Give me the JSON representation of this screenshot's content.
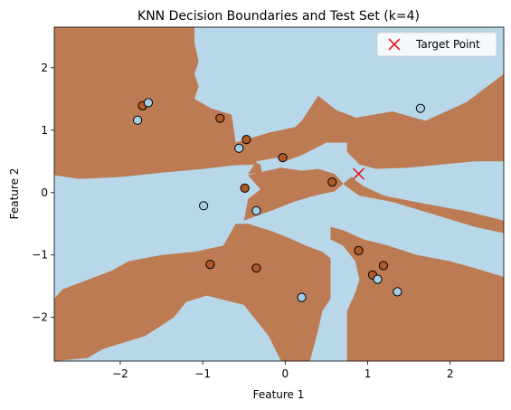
{
  "chart_data": {
    "type": "scatter",
    "title": "KNN Decision Boundaries and Test Set (k=4)",
    "xlabel": "Feature 1",
    "ylabel": "Feature 2",
    "xlim": [
      -2.8,
      2.65
    ],
    "ylim": [
      -2.7,
      2.65
    ],
    "xticks": [
      -2,
      -1,
      0,
      1,
      2
    ],
    "yticks": [
      -2,
      -1,
      0,
      1,
      2
    ],
    "grid": false,
    "legend_position": "top-right",
    "colors": {
      "region_class_0": "#b8d7e8",
      "region_class_1": "#bd7b53",
      "point_class_0": "#a6cee3",
      "point_class_1": "#b15928",
      "target": "#e41a1c",
      "point_edge": "#000000"
    },
    "test_points": [
      {
        "x": -1.73,
        "y": 1.39,
        "class": 1
      },
      {
        "x": -1.66,
        "y": 1.44,
        "class": 0
      },
      {
        "x": -1.79,
        "y": 1.16,
        "class": 0
      },
      {
        "x": -0.79,
        "y": 1.19,
        "class": 1
      },
      {
        "x": -0.47,
        "y": 0.85,
        "class": 1
      },
      {
        "x": -0.56,
        "y": 0.71,
        "class": 0
      },
      {
        "x": -0.03,
        "y": 0.56,
        "class": 1
      },
      {
        "x": -0.49,
        "y": 0.07,
        "class": 1
      },
      {
        "x": 0.57,
        "y": 0.17,
        "class": 1
      },
      {
        "x": 1.64,
        "y": 1.35,
        "class": 0
      },
      {
        "x": -0.99,
        "y": -0.21,
        "class": 0
      },
      {
        "x": -0.35,
        "y": -0.29,
        "class": 0
      },
      {
        "x": -0.91,
        "y": -1.15,
        "class": 1
      },
      {
        "x": -0.35,
        "y": -1.21,
        "class": 1
      },
      {
        "x": 0.2,
        "y": -1.68,
        "class": 0
      },
      {
        "x": 0.89,
        "y": -0.93,
        "class": 1
      },
      {
        "x": 1.19,
        "y": -1.17,
        "class": 1
      },
      {
        "x": 1.06,
        "y": -1.32,
        "class": 1
      },
      {
        "x": 1.12,
        "y": -1.39,
        "class": 0
      },
      {
        "x": 1.36,
        "y": -1.59,
        "class": 0
      }
    ],
    "target_point": {
      "x": 0.89,
      "y": 0.3,
      "name": "Target Point"
    },
    "regions_class_1": [
      [
        [
          -2.8,
          0.28
        ],
        [
          -2.2,
          0.42
        ],
        [
          -1.6,
          0.52
        ],
        [
          -1.0,
          0.64
        ],
        [
          -0.6,
          0.8
        ],
        [
          -0.2,
          0.96
        ],
        [
          0.12,
          1.05
        ],
        [
          0.2,
          1.15
        ],
        [
          0.4,
          1.55
        ],
        [
          0.62,
          1.32
        ],
        [
          0.86,
          1.2
        ],
        [
          1.3,
          1.3
        ],
        [
          1.7,
          1.15
        ],
        [
          2.2,
          1.45
        ],
        [
          2.65,
          1.9
        ],
        [
          2.65,
          0.5
        ],
        [
          2.3,
          0.5
        ],
        [
          1.9,
          0.45
        ],
        [
          1.5,
          0.4
        ],
        [
          1.1,
          0.38
        ],
        [
          0.9,
          0.45
        ],
        [
          0.75,
          0.65
        ],
        [
          0.75,
          0.8
        ],
        [
          0.5,
          0.8
        ],
        [
          0.2,
          0.6
        ],
        [
          0.0,
          0.5
        ],
        [
          -0.1,
          0.56
        ],
        [
          -0.35,
          0.5
        ],
        [
          -0.45,
          0.3
        ],
        [
          -0.28,
          0.32
        ],
        [
          -0.3,
          0.45
        ],
        [
          -0.6,
          0.44
        ],
        [
          -1.0,
          0.38
        ],
        [
          -1.5,
          0.32
        ],
        [
          -2.0,
          0.25
        ],
        [
          -2.5,
          0.22
        ]
      ],
      [
        [
          -2.8,
          0.28
        ],
        [
          -2.5,
          0.22
        ],
        [
          -2.0,
          0.25
        ],
        [
          -1.5,
          0.32
        ],
        [
          -1.0,
          0.38
        ],
        [
          -0.6,
          0.44
        ],
        [
          -0.3,
          0.45
        ],
        [
          -0.45,
          0.55
        ],
        [
          -0.6,
          0.8
        ],
        [
          -0.65,
          1.25
        ],
        [
          -0.9,
          1.35
        ],
        [
          -1.1,
          1.5
        ],
        [
          -1.05,
          1.7
        ],
        [
          -1.1,
          1.9
        ],
        [
          -1.05,
          2.1
        ],
        [
          -1.1,
          2.4
        ],
        [
          -1.1,
          2.65
        ],
        [
          -2.8,
          2.65
        ]
      ],
      [
        [
          -0.5,
          -0.45
        ],
        [
          -0.45,
          -0.1
        ],
        [
          -0.3,
          0.05
        ],
        [
          -0.45,
          0.28
        ],
        [
          -0.25,
          0.34
        ],
        [
          -0.05,
          0.4
        ],
        [
          0.2,
          0.35
        ],
        [
          0.4,
          0.38
        ],
        [
          0.6,
          0.3
        ],
        [
          0.72,
          0.12
        ],
        [
          0.9,
          -0.05
        ],
        [
          1.3,
          -0.15
        ],
        [
          1.8,
          -0.35
        ],
        [
          2.3,
          -0.55
        ],
        [
          2.65,
          -0.65
        ],
        [
          2.65,
          -0.45
        ],
        [
          2.2,
          -0.3
        ],
        [
          1.7,
          -0.18
        ],
        [
          1.2,
          -0.05
        ],
        [
          0.95,
          0.1
        ],
        [
          0.8,
          0.25
        ],
        [
          0.6,
          0.02
        ],
        [
          0.35,
          -0.05
        ],
        [
          0.1,
          -0.15
        ],
        [
          -0.15,
          -0.28
        ],
        [
          -0.3,
          -0.35
        ]
      ],
      [
        [
          -2.8,
          -1.7
        ],
        [
          -2.7,
          -1.55
        ],
        [
          -2.5,
          -1.45
        ],
        [
          -2.1,
          -1.25
        ],
        [
          -1.9,
          -1.1
        ],
        [
          -1.5,
          -1.0
        ],
        [
          -1.1,
          -0.95
        ],
        [
          -0.75,
          -0.85
        ],
        [
          -0.6,
          -0.5
        ],
        [
          -0.45,
          -0.5
        ],
        [
          -0.2,
          -0.6
        ],
        [
          0.0,
          -0.7
        ],
        [
          0.25,
          -0.85
        ],
        [
          0.45,
          -0.95
        ],
        [
          0.55,
          -1.05
        ],
        [
          0.55,
          -1.7
        ],
        [
          0.45,
          -1.9
        ],
        [
          0.4,
          -2.2
        ],
        [
          0.3,
          -2.7
        ],
        [
          -0.05,
          -2.7
        ],
        [
          -0.2,
          -2.3
        ],
        [
          -0.5,
          -1.8
        ],
        [
          -0.95,
          -1.65
        ],
        [
          -1.2,
          -1.75
        ],
        [
          -1.35,
          -2.0
        ],
        [
          -1.7,
          -2.3
        ],
        [
          -2.2,
          -2.5
        ],
        [
          -2.4,
          -2.65
        ],
        [
          -2.8,
          -2.7
        ]
      ],
      [
        [
          0.55,
          -0.55
        ],
        [
          0.7,
          -0.6
        ],
        [
          0.95,
          -0.75
        ],
        [
          1.25,
          -0.85
        ],
        [
          1.6,
          -1.0
        ],
        [
          2.0,
          -1.1
        ],
        [
          2.4,
          -1.25
        ],
        [
          2.65,
          -1.35
        ],
        [
          2.65,
          -2.7
        ],
        [
          0.75,
          -2.7
        ],
        [
          0.75,
          -1.9
        ],
        [
          0.85,
          -1.6
        ],
        [
          0.9,
          -1.4
        ],
        [
          0.85,
          -1.1
        ],
        [
          0.7,
          -0.85
        ],
        [
          0.55,
          -0.75
        ]
      ]
    ]
  }
}
